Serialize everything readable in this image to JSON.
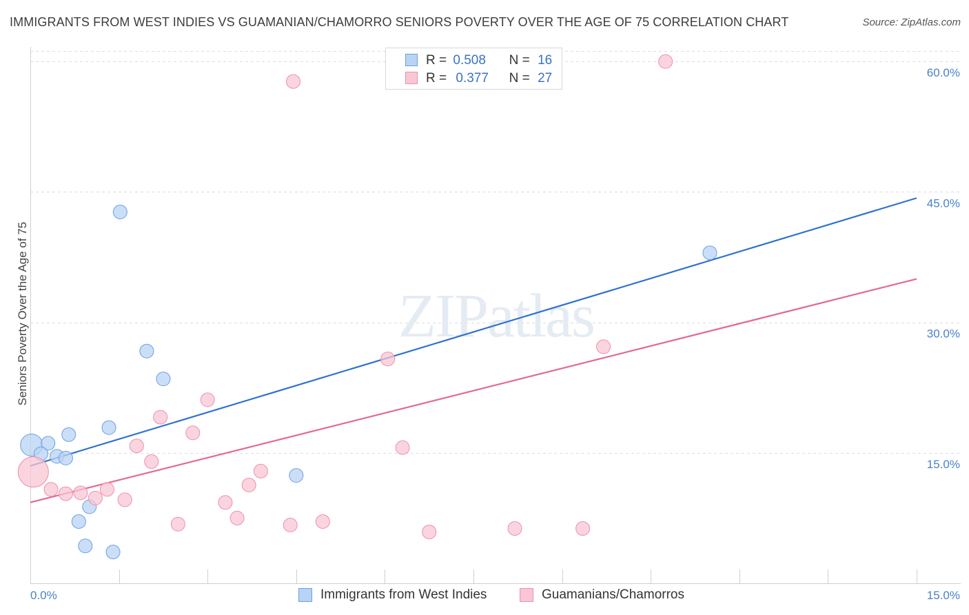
{
  "chart_data": {
    "type": "scatter",
    "title": "IMMIGRANTS FROM WEST INDIES VS GUAMANIAN/CHAMORRO SENIORS POVERTY OVER THE AGE OF 75 CORRELATION CHART",
    "source": "Source: ZipAtlas.com",
    "xlabel": "",
    "ylabel": "Seniors Poverty Over the Age of 75",
    "xlim": [
      0,
      15
    ],
    "ylim": [
      0,
      62
    ],
    "x_tick_labels": [
      "0.0%",
      "15.0%"
    ],
    "y_ticks": [
      15,
      30,
      45,
      60
    ],
    "y_tick_labels": [
      "15.0%",
      "30.0%",
      "45.0%",
      "60.0%"
    ],
    "grid": true,
    "watermark": "ZIPatlas",
    "legend_position": "top-center",
    "series": [
      {
        "name": "Immigrants from West Indies",
        "color": "#6a9fe0",
        "fill": "#b9d3f5",
        "line_color": "#2f72d0",
        "R": "0.508",
        "N": "16",
        "trend": [
          [
            0,
            13.5
          ],
          [
            15,
            44.3
          ]
        ],
        "points": [
          [
            0.02,
            15.9
          ],
          [
            0.3,
            16.1
          ],
          [
            0.18,
            14.9
          ],
          [
            0.45,
            14.6
          ],
          [
            0.6,
            14.4
          ],
          [
            0.65,
            17.1
          ],
          [
            1.33,
            17.9
          ],
          [
            1.52,
            42.7
          ],
          [
            1.97,
            26.7
          ],
          [
            2.25,
            23.5
          ],
          [
            4.5,
            12.4
          ],
          [
            11.5,
            38.0
          ],
          [
            0.82,
            7.1
          ],
          [
            1.0,
            8.8
          ],
          [
            0.93,
            4.3
          ],
          [
            1.4,
            3.6
          ]
        ],
        "sizes": [
          16,
          10,
          10,
          10,
          10,
          10,
          10,
          10,
          10,
          10,
          10,
          10,
          10,
          10,
          10,
          10
        ]
      },
      {
        "name": "Guamanians/Chamorros",
        "color": "#ee8fab",
        "fill": "#f8c6d4",
        "line_color": "#e06a92",
        "R": "0.377",
        "N": "27",
        "trend": [
          [
            0,
            9.3
          ],
          [
            15,
            35.0
          ]
        ],
        "points": [
          [
            0.05,
            12.8
          ],
          [
            0.35,
            10.8
          ],
          [
            0.6,
            10.3
          ],
          [
            0.85,
            10.4
          ],
          [
            1.1,
            9.8
          ],
          [
            1.3,
            10.8
          ],
          [
            1.6,
            9.6
          ],
          [
            1.8,
            15.8
          ],
          [
            2.05,
            14.0
          ],
          [
            2.2,
            19.1
          ],
          [
            2.5,
            6.8
          ],
          [
            2.75,
            17.3
          ],
          [
            3.0,
            21.1
          ],
          [
            3.3,
            9.3
          ],
          [
            3.5,
            7.5
          ],
          [
            3.7,
            11.3
          ],
          [
            3.9,
            12.9
          ],
          [
            4.4,
            6.7
          ],
          [
            4.95,
            7.1
          ],
          [
            4.45,
            57.7
          ],
          [
            6.05,
            25.8
          ],
          [
            6.3,
            15.6
          ],
          [
            6.75,
            5.9
          ],
          [
            8.2,
            6.3
          ],
          [
            9.35,
            6.3
          ],
          [
            9.7,
            27.2
          ],
          [
            10.75,
            60.0
          ]
        ],
        "sizes": [
          22,
          10,
          10,
          10,
          10,
          10,
          10,
          10,
          10,
          10,
          10,
          10,
          10,
          10,
          10,
          10,
          10,
          10,
          10,
          10,
          10,
          10,
          10,
          10,
          10,
          10,
          10
        ]
      }
    ]
  },
  "legend": {
    "r_label": "R =",
    "n_label": "N ="
  }
}
